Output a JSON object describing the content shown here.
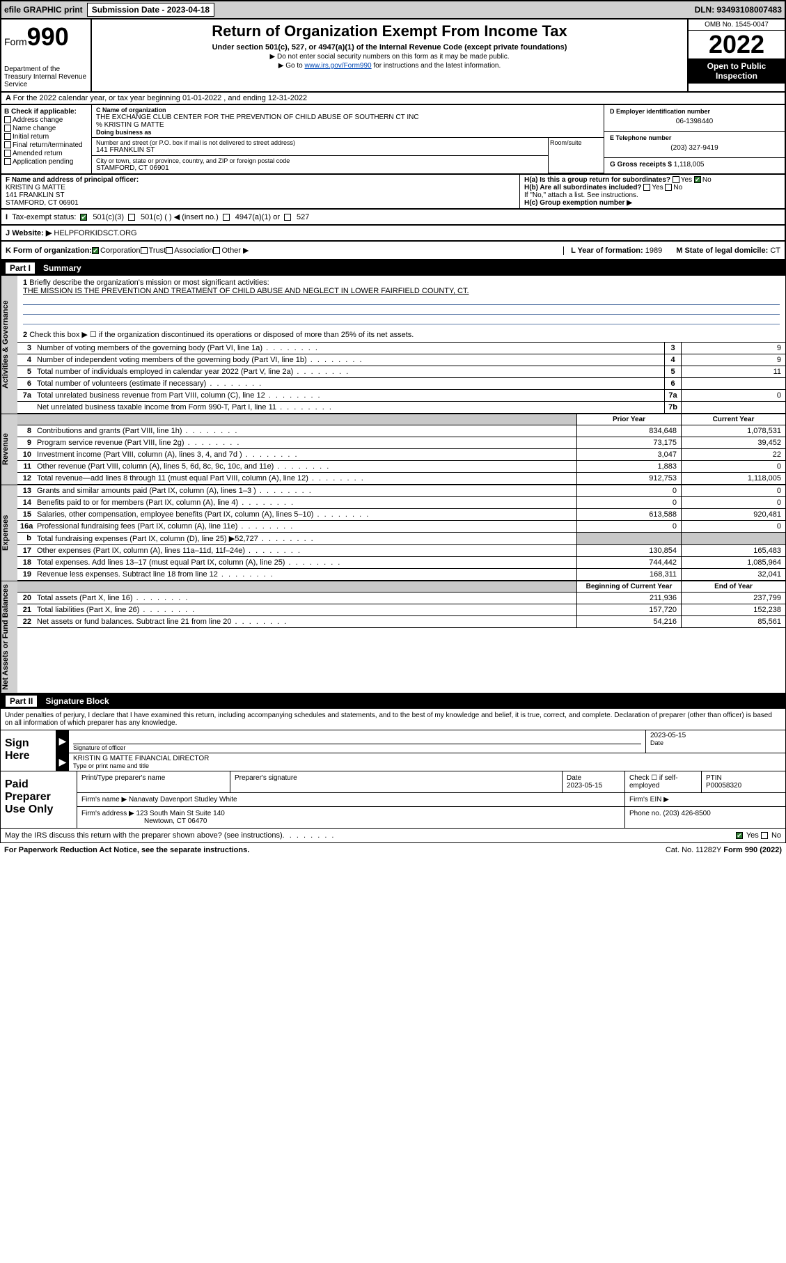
{
  "topbar": {
    "efile": "efile GRAPHIC print",
    "submission_label": "Submission Date - 2023-04-18",
    "dln": "DLN: 93493108007483"
  },
  "header": {
    "form_prefix": "Form",
    "form_number": "990",
    "dept": "Department of the Treasury Internal Revenue Service",
    "title": "Return of Organization Exempt From Income Tax",
    "subtitle": "Under section 501(c), 527, or 4947(a)(1) of the Internal Revenue Code (except private foundations)",
    "note1": "▶ Do not enter social security numbers on this form as it may be made public.",
    "note2_prefix": "▶ Go to ",
    "note2_link": "www.irs.gov/Form990",
    "note2_suffix": " for instructions and the latest information.",
    "omb": "OMB No. 1545-0047",
    "year": "2022",
    "open": "Open to Public Inspection"
  },
  "row_a": "For the 2022 calendar year, or tax year beginning 01-01-2022    , and ending 12-31-2022",
  "col_b": {
    "title": "B Check if applicable:",
    "items": [
      "Address change",
      "Name change",
      "Initial return",
      "Final return/terminated",
      "Amended return",
      "Application pending"
    ]
  },
  "col_c": {
    "name_label": "C Name of organization",
    "name": "THE EXCHANGE CLUB CENTER FOR THE PREVENTION OF CHILD ABUSE OF SOUTHERN CT INC",
    "care_of": "% KRISTIN G MATTE",
    "dba_label": "Doing business as",
    "street_label": "Number and street (or P.O. box if mail is not delivered to street address)",
    "street": "141 FRANKLIN ST",
    "room_label": "Room/suite",
    "city_label": "City or town, state or province, country, and ZIP or foreign postal code",
    "city": "STAMFORD, CT  06901"
  },
  "col_d": {
    "label": "D Employer identification number",
    "value": "06-1398440"
  },
  "col_e": {
    "label": "E Telephone number",
    "value": "(203) 327-9419"
  },
  "col_g": {
    "label": "G Gross receipts $",
    "value": "1,118,005"
  },
  "row_f": {
    "label": "F Name and address of principal officer:",
    "name": "KRISTIN G MATTE",
    "addr1": "141 FRANKLIN ST",
    "addr2": "STAMFORD, CT  06901"
  },
  "row_h": {
    "ha": "H(a)  Is this a group return for subordinates?",
    "ha_no": "No",
    "hb": "H(b)  Are all subordinates included?",
    "hb_note": "If \"No,\" attach a list. See instructions.",
    "hc": "H(c)  Group exemption number ▶"
  },
  "row_i": {
    "label": "Tax-exempt status:",
    "opt1": "501(c)(3)",
    "opt2": "501(c) (  ) ◀ (insert no.)",
    "opt3": "4947(a)(1) or",
    "opt4": "527"
  },
  "row_j": {
    "label": "Website: ▶",
    "value": "HELPFORKIDSCT.ORG"
  },
  "row_k": {
    "label": "K Form of organization:",
    "opts": [
      "Corporation",
      "Trust",
      "Association",
      "Other ▶"
    ],
    "l_label": "L Year of formation:",
    "l_val": "1989",
    "m_label": "M State of legal domicile:",
    "m_val": "CT"
  },
  "part1": {
    "label": "Part I",
    "title": "Summary",
    "l1_label": "Briefly describe the organization's mission or most significant activities:",
    "l1_text": "THE MISSION IS THE PREVENTION AND TREATMENT OF CHILD ABUSE AND NEGLECT IN LOWER FAIRFIELD COUNTY, CT.",
    "l2": "Check this box ▶ ☐  if the organization discontinued its operations or disposed of more than 25% of its net assets."
  },
  "vtabs": {
    "act_gov": "Activities & Governance",
    "revenue": "Revenue",
    "expenses": "Expenses",
    "net": "Net Assets or Fund Balances"
  },
  "gov_rows": [
    {
      "n": "3",
      "lbl": "Number of voting members of the governing body (Part VI, line 1a)",
      "box": "3",
      "val": "9"
    },
    {
      "n": "4",
      "lbl": "Number of independent voting members of the governing body (Part VI, line 1b)",
      "box": "4",
      "val": "9"
    },
    {
      "n": "5",
      "lbl": "Total number of individuals employed in calendar year 2022 (Part V, line 2a)",
      "box": "5",
      "val": "11"
    },
    {
      "n": "6",
      "lbl": "Total number of volunteers (estimate if necessary)",
      "box": "6",
      "val": ""
    },
    {
      "n": "7a",
      "lbl": "Total unrelated business revenue from Part VIII, column (C), line 12",
      "box": "7a",
      "val": "0"
    },
    {
      "n": "",
      "lbl": "Net unrelated business taxable income from Form 990-T, Part I, line 11",
      "box": "7b",
      "val": ""
    }
  ],
  "col_headers": {
    "prior": "Prior Year",
    "current": "Current Year",
    "begin": "Beginning of Current Year",
    "end": "End of Year"
  },
  "rev_rows": [
    {
      "n": "8",
      "lbl": "Contributions and grants (Part VIII, line 1h)",
      "p": "834,648",
      "c": "1,078,531"
    },
    {
      "n": "9",
      "lbl": "Program service revenue (Part VIII, line 2g)",
      "p": "73,175",
      "c": "39,452"
    },
    {
      "n": "10",
      "lbl": "Investment income (Part VIII, column (A), lines 3, 4, and 7d )",
      "p": "3,047",
      "c": "22"
    },
    {
      "n": "11",
      "lbl": "Other revenue (Part VIII, column (A), lines 5, 6d, 8c, 9c, 10c, and 11e)",
      "p": "1,883",
      "c": "0"
    },
    {
      "n": "12",
      "lbl": "Total revenue—add lines 8 through 11 (must equal Part VIII, column (A), line 12)",
      "p": "912,753",
      "c": "1,118,005"
    }
  ],
  "exp_rows": [
    {
      "n": "13",
      "lbl": "Grants and similar amounts paid (Part IX, column (A), lines 1–3 )",
      "p": "0",
      "c": "0"
    },
    {
      "n": "14",
      "lbl": "Benefits paid to or for members (Part IX, column (A), line 4)",
      "p": "0",
      "c": "0"
    },
    {
      "n": "15",
      "lbl": "Salaries, other compensation, employee benefits (Part IX, column (A), lines 5–10)",
      "p": "613,588",
      "c": "920,481"
    },
    {
      "n": "16a",
      "lbl": "Professional fundraising fees (Part IX, column (A), line 11e)",
      "p": "0",
      "c": "0"
    },
    {
      "n": "b",
      "lbl": "Total fundraising expenses (Part IX, column (D), line 25) ▶52,727",
      "p": "",
      "c": "",
      "shaded": true
    },
    {
      "n": "17",
      "lbl": "Other expenses (Part IX, column (A), lines 11a–11d, 11f–24e)",
      "p": "130,854",
      "c": "165,483"
    },
    {
      "n": "18",
      "lbl": "Total expenses. Add lines 13–17 (must equal Part IX, column (A), line 25)",
      "p": "744,442",
      "c": "1,085,964"
    },
    {
      "n": "19",
      "lbl": "Revenue less expenses. Subtract line 18 from line 12",
      "p": "168,311",
      "c": "32,041"
    }
  ],
  "net_rows": [
    {
      "n": "20",
      "lbl": "Total assets (Part X, line 16)",
      "p": "211,936",
      "c": "237,799"
    },
    {
      "n": "21",
      "lbl": "Total liabilities (Part X, line 26)",
      "p": "157,720",
      "c": "152,238"
    },
    {
      "n": "22",
      "lbl": "Net assets or fund balances. Subtract line 21 from line 20",
      "p": "54,216",
      "c": "85,561"
    }
  ],
  "part2": {
    "label": "Part II",
    "title": "Signature Block"
  },
  "sig_intro": "Under penalties of perjury, I declare that I have examined this return, including accompanying schedules and statements, and to the best of my knowledge and belief, it is true, correct, and complete. Declaration of preparer (other than officer) is based on all information of which preparer has any knowledge.",
  "sign": {
    "block": "Sign Here",
    "sig_label": "Signature of officer",
    "date": "2023-05-15",
    "date_label": "Date",
    "name": "KRISTIN G MATTE  FINANCIAL DIRECTOR",
    "name_label": "Type or print name and title"
  },
  "prep": {
    "block": "Paid Preparer Use Only",
    "h1": "Print/Type preparer's name",
    "h2": "Preparer's signature",
    "h3": "Date",
    "h3v": "2023-05-15",
    "h4": "Check ☐ if self-employed",
    "h5": "PTIN",
    "h5v": "P00058320",
    "firm_name_lbl": "Firm's name    ▶",
    "firm_name": "Nanavaty Davenport Studley White",
    "firm_ein_lbl": "Firm's EIN ▶",
    "firm_addr_lbl": "Firm's address ▶",
    "firm_addr1": "123 South Main St Suite 140",
    "firm_addr2": "Newtown, CT  06470",
    "phone_lbl": "Phone no.",
    "phone": "(203) 426-8500"
  },
  "footer": {
    "discuss": "May the IRS discuss this return with the preparer shown above? (see instructions)",
    "yes": "Yes",
    "no": "No",
    "paperwork": "For Paperwork Reduction Act Notice, see the separate instructions.",
    "cat": "Cat. No. 11282Y",
    "formno": "Form 990 (2022)"
  },
  "colors": {
    "link": "#0047b3",
    "shade": "#c8c8c8",
    "line": "#5b7aa8"
  }
}
